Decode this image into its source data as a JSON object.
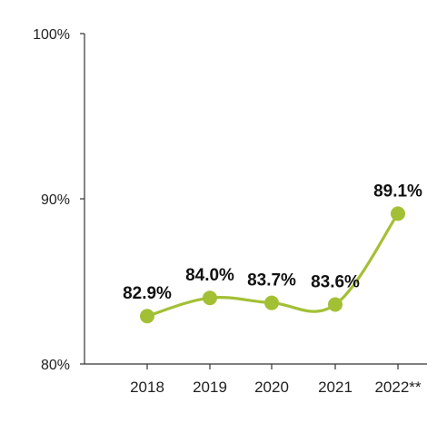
{
  "chart_data": {
    "type": "line",
    "categories": [
      "2018",
      "2019",
      "2020",
      "2021",
      "2022**"
    ],
    "series": [
      {
        "values": [
          82.9,
          84.0,
          83.7,
          83.6,
          89.1
        ]
      }
    ],
    "data_labels": [
      "82.9%",
      "84.0%",
      "83.7%",
      "83.6%",
      "89.1%"
    ],
    "ylim": [
      80,
      100
    ],
    "yticks": [
      {
        "value": 80,
        "label": "80%"
      },
      {
        "value": 90,
        "label": "90%"
      },
      {
        "value": 100,
        "label": "100%"
      }
    ],
    "grid": false,
    "line_color": "#a3c035"
  }
}
